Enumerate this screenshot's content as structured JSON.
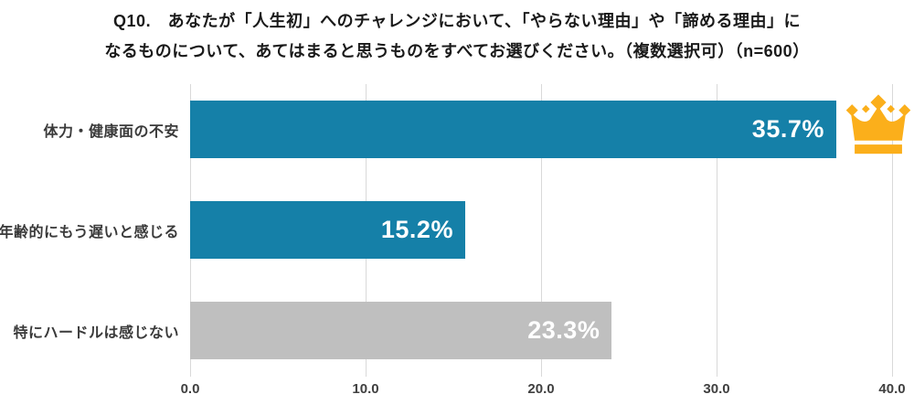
{
  "title": {
    "line1": "Q10.　あなたが「人生初」へのチャレンジにおいて、「やらない理由」や「諦める理由」に",
    "line2": "なるものについて、あてはまると思うものをすべてお選びください。（複数選択可）（n=600）"
  },
  "chart_data": {
    "type": "bar",
    "orientation": "horizontal",
    "title": "Q10. あなたが「人生初」へのチャレンジにおいて、「やらない理由」や「諦める理由」になるものについて、あてはまると思うものをすべてお選びください。（複数選択可）（n=600）",
    "sample_size": "n=600",
    "categories": [
      "体力・健康面の不安",
      "年齢的にもう遅いと感じる",
      "特にハードルは感じない"
    ],
    "values": [
      35.7,
      15.2,
      23.3
    ],
    "value_labels": [
      "35.7%",
      "15.2%",
      "23.3%"
    ],
    "bar_colors": [
      "#1580a8",
      "#1580a8",
      "#bfbfbf"
    ],
    "xlim": [
      0,
      40
    ],
    "x_tick_labels": [
      "0.0",
      "10.0",
      "20.0",
      "30.0",
      "40.0"
    ],
    "grid": true,
    "legend": "none",
    "annotation": "crown icon marks top-ranked bar (35.7%)"
  },
  "colors": {
    "accent_teal": "#1580a8",
    "neutral_gray": "#bfbfbf",
    "crown_gold": "#fbaf1b",
    "gridline": "#d9d9d9"
  }
}
